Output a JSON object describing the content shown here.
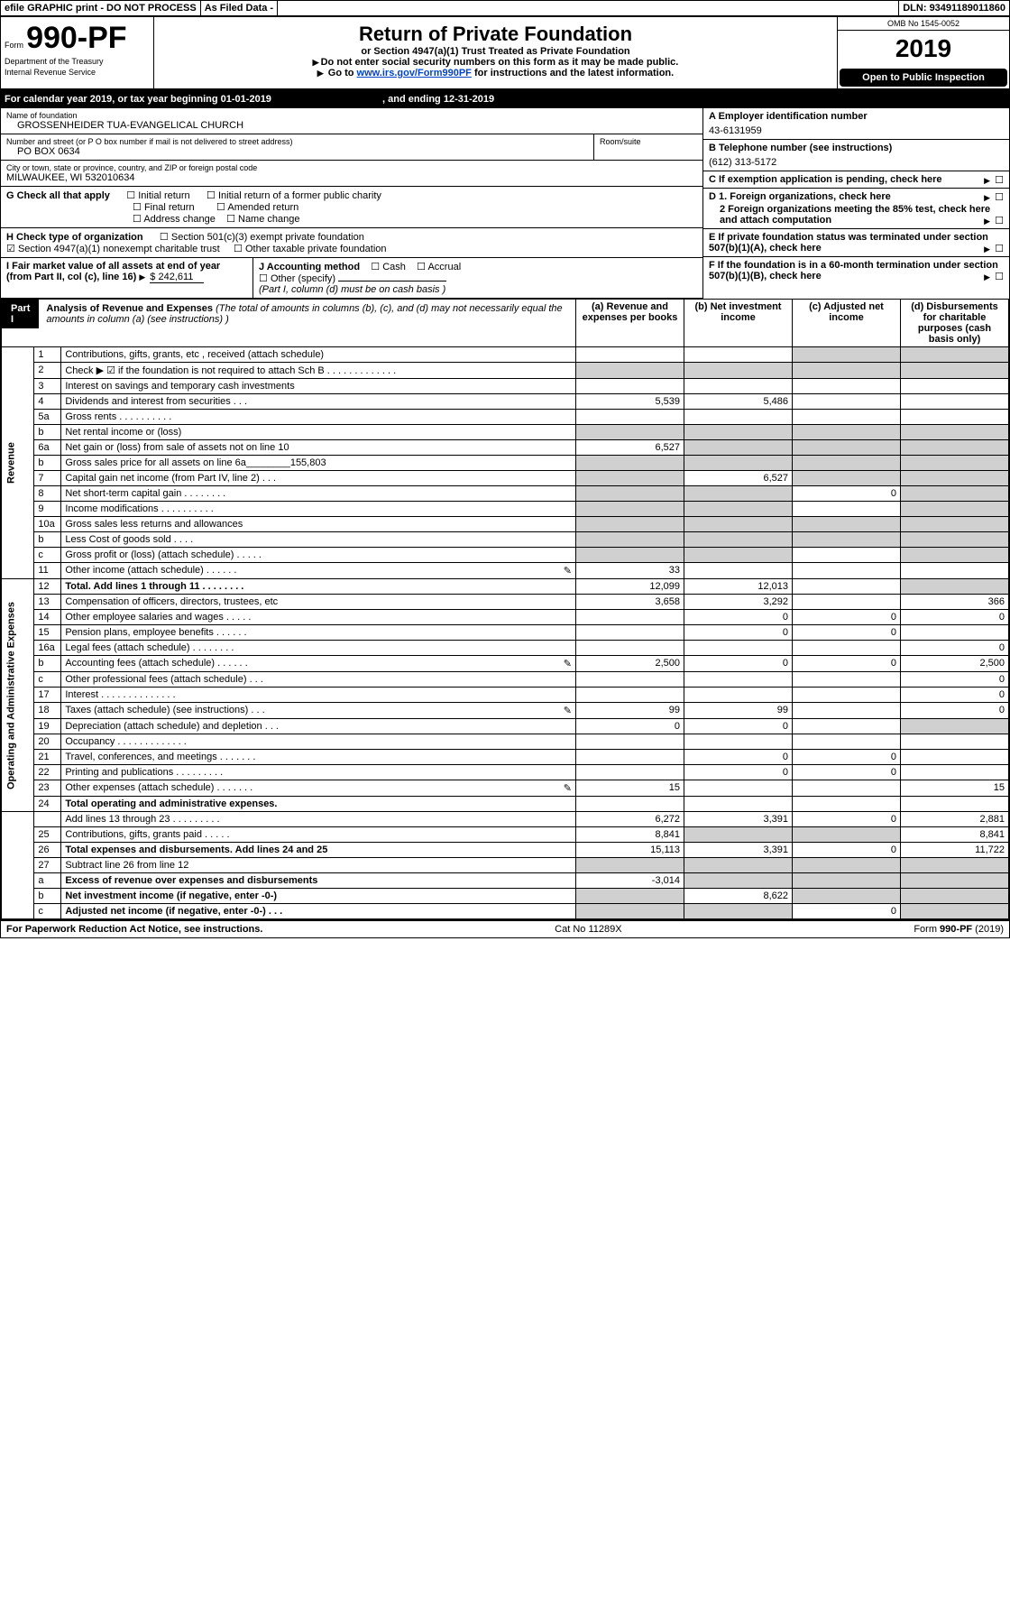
{
  "top": {
    "efile": "efile GRAPHIC print - DO NOT PROCESS",
    "asfiled": "As Filed Data -",
    "dln_label": "DLN:",
    "dln": "93491189011860",
    "omb": "OMB No 1545-0052"
  },
  "header": {
    "form_prefix": "Form",
    "form_num": "990-PF",
    "dept": "Department of the Treasury",
    "irs": "Internal Revenue Service",
    "title": "Return of Private Foundation",
    "subtitle": "or Section 4947(a)(1) Trust Treated as Private Foundation",
    "note1": "Do not enter social security numbers on this form as it may be made public.",
    "note2_pre": "Go to ",
    "note2_link": "www.irs.gov/Form990PF",
    "note2_post": " for instructions and the latest information.",
    "year": "2019",
    "open": "Open to Public Inspection"
  },
  "calrow": {
    "text_a": "For calendar year 2019, or tax year beginning ",
    "begin": "01-01-2019",
    "text_b": ", and ending ",
    "end": "12-31-2019"
  },
  "id": {
    "name_lbl": "Name of foundation",
    "name": "GROSSENHEIDER TUA-EVANGELICAL CHURCH",
    "addr_lbl": "Number and street (or P O  box number if mail is not delivered to street address)",
    "addr": "PO BOX 0634",
    "room_lbl": "Room/suite",
    "city_lbl": "City or town, state or province, country, and ZIP or foreign postal code",
    "city": "MILWAUKEE, WI  532010634",
    "ein_lbl": "A Employer identification number",
    "ein": "43-6131959",
    "phone_lbl": "B Telephone number (see instructions)",
    "phone": "(612) 313-5172",
    "c_lbl": "C If exemption application is pending, check here",
    "g_lbl": "G Check all that apply",
    "g_opts": [
      "Initial return",
      "Initial return of a former public charity",
      "Final return",
      "Amended return",
      "Address change",
      "Name change"
    ],
    "h_lbl": "H Check type of organization",
    "h_1": "Section 501(c)(3) exempt private foundation",
    "h_2": "Section 4947(a)(1) nonexempt charitable trust",
    "h_3": "Other taxable private foundation",
    "d1": "D 1. Foreign organizations, check here",
    "d2": "2 Foreign organizations meeting the 85% test, check here and attach computation",
    "e": "E  If private foundation status was terminated under section 507(b)(1)(A), check here",
    "f": "F  If the foundation is in a 60-month termination under section 507(b)(1)(B), check here",
    "i_lbl": "I Fair market value of all assets at end of year (from Part II, col  (c), line 16) ",
    "i_val": "$  242,611",
    "j_lbl": "J Accounting method",
    "j_cash": "Cash",
    "j_acc": "Accrual",
    "j_other": "Other (specify)",
    "j_note": "(Part I, column (d) must be on cash basis )"
  },
  "part1": {
    "label": "Part I",
    "title": "Analysis of Revenue and Expenses",
    "title_note": " (The total of amounts in columns (b), (c), and (d) may not necessarily equal the amounts in column (a) (see instructions) )",
    "col_a": "(a)  Revenue and expenses per books",
    "col_b": "(b)  Net investment income",
    "col_c": "(c)  Adjusted net income",
    "col_d": "(d)  Disbursements for charitable purposes (cash basis only)"
  },
  "side": {
    "rev": "Revenue",
    "exp": "Operating and Administrative Expenses"
  },
  "rows": [
    {
      "n": "1",
      "d": "Contributions, gifts, grants, etc , received (attach schedule)",
      "a": "",
      "b": "",
      "c": "",
      "dd": "",
      "cg": [
        "",
        "",
        "g",
        "g"
      ]
    },
    {
      "n": "2",
      "d": "Check ▶ ☑ if the foundation is not required to attach Sch B     .   .   .   .   .   .   .   .   .   .   .   .   .",
      "a": "",
      "b": "",
      "c": "",
      "dd": "",
      "cg": [
        "g",
        "g",
        "g",
        "g"
      ]
    },
    {
      "n": "3",
      "d": "Interest on savings and temporary cash investments",
      "a": "",
      "b": "",
      "c": "",
      "dd": ""
    },
    {
      "n": "4",
      "d": "Dividends and interest from securities     .   .   .",
      "a": "5,539",
      "b": "5,486",
      "c": "",
      "dd": ""
    },
    {
      "n": "5a",
      "d": "Gross rents     .   .   .   .   .   .   .   .   .   .",
      "a": "",
      "b": "",
      "c": "",
      "dd": ""
    },
    {
      "n": "b",
      "d": "Net rental income or (loss)  ",
      "a": "",
      "b": "",
      "c": "",
      "dd": "",
      "cg": [
        "g",
        "g",
        "g",
        "g"
      ]
    },
    {
      "n": "6a",
      "d": "Net gain or (loss) from sale of assets not on line 10",
      "a": "6,527",
      "b": "",
      "c": "",
      "dd": "",
      "cg": [
        "",
        "g",
        "g",
        "g"
      ]
    },
    {
      "n": "b",
      "d": "Gross sales price for all assets on line 6a________155,803",
      "a": "",
      "b": "",
      "c": "",
      "dd": "",
      "cg": [
        "g",
        "g",
        "g",
        "g"
      ]
    },
    {
      "n": "7",
      "d": "Capital gain net income (from Part IV, line 2)   .   .   .",
      "a": "",
      "b": "6,527",
      "c": "",
      "dd": "",
      "cg": [
        "g",
        "",
        "g",
        "g"
      ]
    },
    {
      "n": "8",
      "d": "Net short-term capital gain  .   .   .   .   .   .   .   .",
      "a": "",
      "b": "",
      "c": "0",
      "dd": "",
      "cg": [
        "g",
        "g",
        "",
        "g"
      ]
    },
    {
      "n": "9",
      "d": "Income modifications .   .   .   .   .   .   .   .   .   .",
      "a": "",
      "b": "",
      "c": "",
      "dd": "",
      "cg": [
        "g",
        "g",
        "",
        "g"
      ]
    },
    {
      "n": "10a",
      "d": "Gross sales less returns and allowances",
      "a": "",
      "b": "",
      "c": "",
      "dd": "",
      "cg": [
        "g",
        "g",
        "g",
        "g"
      ]
    },
    {
      "n": "b",
      "d": "Less  Cost of goods sold     .   .   .   .",
      "a": "",
      "b": "",
      "c": "",
      "dd": "",
      "cg": [
        "g",
        "g",
        "g",
        "g"
      ]
    },
    {
      "n": "c",
      "d": "Gross profit or (loss) (attach schedule)    .   .   .   .   .",
      "a": "",
      "b": "",
      "c": "",
      "dd": "",
      "cg": [
        "g",
        "g",
        "",
        "g"
      ]
    },
    {
      "n": "11",
      "d": "Other income (attach schedule)    .   .   .   .   .   .",
      "a": "33",
      "b": "",
      "c": "",
      "dd": "",
      "icon": "a"
    },
    {
      "n": "12",
      "d": "Total. Add lines 1 through 11   .   .   .   .   .   .   .   .",
      "a": "12,099",
      "b": "12,013",
      "c": "",
      "dd": "",
      "bold": true,
      "cg": [
        "",
        "",
        "",
        "g"
      ]
    },
    {
      "n": "13",
      "d": "Compensation of officers, directors, trustees, etc ",
      "a": "3,658",
      "b": "3,292",
      "c": "",
      "dd": "366"
    },
    {
      "n": "14",
      "d": "Other employee salaries and wages     .   .   .   .   .",
      "a": "",
      "b": "0",
      "c": "0",
      "dd": "0"
    },
    {
      "n": "15",
      "d": "Pension plans, employee benefits  .   .   .   .   .   .",
      "a": "",
      "b": "0",
      "c": "0",
      "dd": ""
    },
    {
      "n": "16a",
      "d": "Legal fees (attach schedule) .   .   .   .   .   .   .   .",
      "a": "",
      "b": "",
      "c": "",
      "dd": "0"
    },
    {
      "n": "b",
      "d": "Accounting fees (attach schedule) .   .   .   .   .   .",
      "a": "2,500",
      "b": "0",
      "c": "0",
      "dd": "2,500",
      "icon": "a"
    },
    {
      "n": "c",
      "d": "Other professional fees (attach schedule)    .   .   .",
      "a": "",
      "b": "",
      "c": "",
      "dd": "0"
    },
    {
      "n": "17",
      "d": "Interest .   .   .   .   .   .   .   .   .   .   .   .   .   .",
      "a": "",
      "b": "",
      "c": "",
      "dd": "0"
    },
    {
      "n": "18",
      "d": "Taxes (attach schedule) (see instructions)     .   .   .",
      "a": "99",
      "b": "99",
      "c": "",
      "dd": "0",
      "icon": "a"
    },
    {
      "n": "19",
      "d": "Depreciation (attach schedule) and depletion   .   .   .",
      "a": "0",
      "b": "0",
      "c": "",
      "dd": "",
      "cg": [
        "",
        "",
        "",
        "g"
      ]
    },
    {
      "n": "20",
      "d": "Occupancy  .   .   .   .   .   .   .   .   .   .   .   .   .",
      "a": "",
      "b": "",
      "c": "",
      "dd": ""
    },
    {
      "n": "21",
      "d": "Travel, conferences, and meetings .   .   .   .   .   .   .",
      "a": "",
      "b": "0",
      "c": "0",
      "dd": ""
    },
    {
      "n": "22",
      "d": "Printing and publications .   .   .   .   .   .   .   .   .",
      "a": "",
      "b": "0",
      "c": "0",
      "dd": ""
    },
    {
      "n": "23",
      "d": "Other expenses (attach schedule) .   .   .   .   .   .   .",
      "a": "15",
      "b": "",
      "c": "",
      "dd": "15",
      "icon": "a"
    },
    {
      "n": "24",
      "d": "Total operating and administrative expenses.",
      "a": "",
      "b": "",
      "c": "",
      "dd": "",
      "bold": true,
      "noborder": true
    },
    {
      "n": "",
      "d": "Add lines 13 through 23  .   .   .   .   .   .   .   .   .",
      "a": "6,272",
      "b": "3,391",
      "c": "0",
      "dd": "2,881"
    },
    {
      "n": "25",
      "d": "Contributions, gifts, grants paid    .   .   .   .   .",
      "a": "8,841",
      "b": "",
      "c": "",
      "dd": "8,841",
      "cg": [
        "",
        "g",
        "g",
        ""
      ]
    },
    {
      "n": "26",
      "d": "Total expenses and disbursements. Add lines 24 and 25",
      "a": "15,113",
      "b": "3,391",
      "c": "0",
      "dd": "11,722",
      "bold": true
    },
    {
      "n": "27",
      "d": "Subtract line 26 from line 12",
      "a": "",
      "b": "",
      "c": "",
      "dd": "",
      "cg": [
        "g",
        "g",
        "g",
        "g"
      ]
    },
    {
      "n": "a",
      "d": "Excess of revenue over expenses and disbursements",
      "a": "-3,014",
      "b": "",
      "c": "",
      "dd": "",
      "bold": true,
      "cg": [
        "",
        "g",
        "g",
        "g"
      ]
    },
    {
      "n": "b",
      "d": "Net investment income (if negative, enter -0-)",
      "a": "",
      "b": "8,622",
      "c": "",
      "dd": "",
      "bold": true,
      "cg": [
        "g",
        "",
        "g",
        "g"
      ]
    },
    {
      "n": "c",
      "d": "Adjusted net income (if negative, enter -0-)   .   .   .",
      "a": "",
      "b": "",
      "c": "0",
      "dd": "",
      "bold": true,
      "cg": [
        "g",
        "g",
        "",
        "g"
      ]
    }
  ],
  "footer": {
    "left": "For Paperwork Reduction Act Notice, see instructions.",
    "mid": "Cat  No  11289X",
    "right": "Form 990-PF (2019)"
  }
}
